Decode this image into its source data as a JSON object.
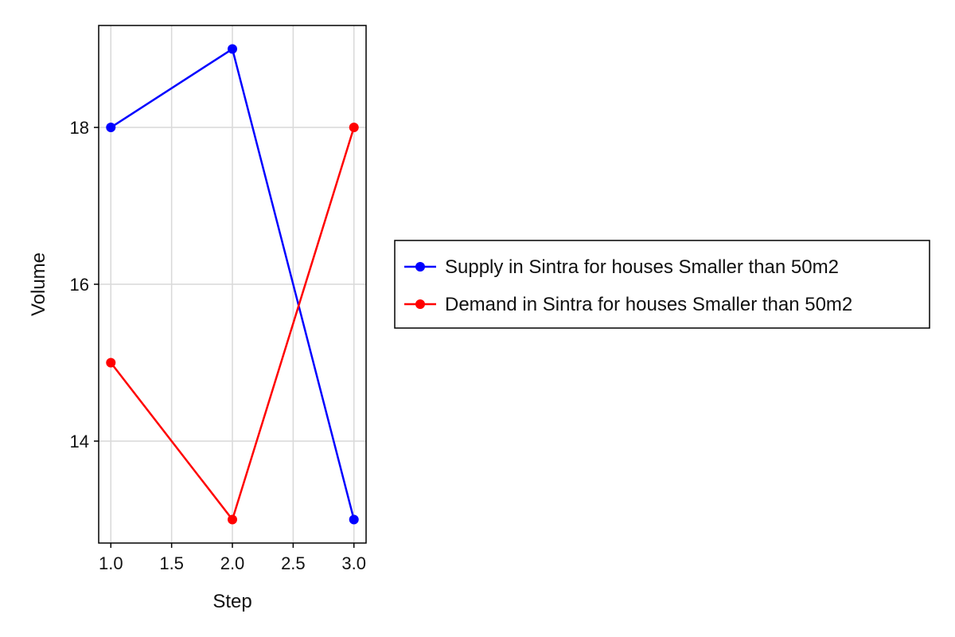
{
  "chart_data": {
    "type": "line",
    "xlabel": "Step",
    "ylabel": "Volume",
    "xlim": [
      0.9,
      3.1
    ],
    "ylim": [
      12.7,
      19.3
    ],
    "xticks": [
      1.0,
      1.5,
      2.0,
      2.5,
      3.0
    ],
    "xtick_labels": [
      "1.0",
      "1.5",
      "2.0",
      "2.5",
      "3.0"
    ],
    "yticks": [
      14,
      16,
      18
    ],
    "ytick_labels": [
      "14",
      "16",
      "18"
    ],
    "grid": true,
    "legend_position": "outside-right",
    "series": [
      {
        "name": "Supply in Sintra for houses Smaller than 50m2",
        "color": "#0000ff",
        "x": [
          1,
          2,
          3
        ],
        "y": [
          18,
          19,
          13
        ]
      },
      {
        "name": "Demand in Sintra for houses Smaller than 50m2",
        "color": "#ff0000",
        "x": [
          1,
          2,
          3
        ],
        "y": [
          15,
          13,
          18
        ]
      }
    ]
  }
}
